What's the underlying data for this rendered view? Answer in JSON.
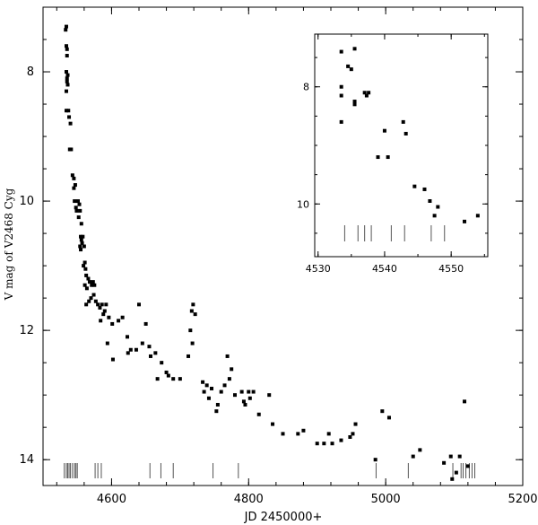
{
  "chart_data": [
    {
      "type": "scatter",
      "xlabel": "JD 2450000+",
      "ylabel": "V mag of V2468 Cyg",
      "xlim": [
        4500,
        5200
      ],
      "ylim": [
        7.0,
        14.4
      ],
      "y_inverted": true,
      "x_ticks": [
        4600,
        4800,
        5000,
        5200
      ],
      "x_tick_labels": [
        "4600",
        "4800",
        "5000",
        "5200"
      ],
      "y_ticks": [
        8,
        10,
        12,
        14
      ],
      "y_tick_labels": [
        "8",
        "10",
        "12",
        "14"
      ],
      "series": [
        {
          "marker": "square",
          "points": [
            [
              4533,
              7.35
            ],
            [
              4534,
              7.3
            ],
            [
              4534,
              7.6
            ],
            [
              4535,
              7.65
            ],
            [
              4535,
              7.75
            ],
            [
              4534,
              8.0
            ],
            [
              4535,
              8.1
            ],
            [
              4535,
              8.15
            ],
            [
              4536,
              8.05
            ],
            [
              4536,
              8.2
            ],
            [
              4534,
              8.3
            ],
            [
              4534,
              8.6
            ],
            [
              4537,
              8.6
            ],
            [
              4538,
              8.7
            ],
            [
              4540,
              8.8
            ],
            [
              4539,
              9.2
            ],
            [
              4541,
              9.2
            ],
            [
              4543,
              9.6
            ],
            [
              4545,
              9.65
            ],
            [
              4545,
              9.8
            ],
            [
              4547,
              9.75
            ],
            [
              4546,
              10.0
            ],
            [
              4548,
              10.1
            ],
            [
              4549,
              10.15
            ],
            [
              4551,
              10.0
            ],
            [
              4553,
              10.05
            ],
            [
              4554,
              10.15
            ],
            [
              4552,
              10.25
            ],
            [
              4556,
              10.35
            ],
            [
              4555,
              10.55
            ],
            [
              4556,
              10.6
            ],
            [
              4558,
              10.55
            ],
            [
              4557,
              10.65
            ],
            [
              4554,
              10.7
            ],
            [
              4555,
              10.75
            ],
            [
              4560,
              10.7
            ],
            [
              4561,
              10.95
            ],
            [
              4559,
              11.0
            ],
            [
              4562,
              11.05
            ],
            [
              4563,
              11.15
            ],
            [
              4561,
              11.3
            ],
            [
              4564,
              11.35
            ],
            [
              4566,
              11.2
            ],
            [
              4568,
              11.25
            ],
            [
              4571,
              11.3
            ],
            [
              4573,
              11.25
            ],
            [
              4575,
              11.3
            ],
            [
              4574,
              11.45
            ],
            [
              4570,
              11.5
            ],
            [
              4567,
              11.55
            ],
            [
              4563,
              11.6
            ],
            [
              4577,
              11.55
            ],
            [
              4580,
              11.6
            ],
            [
              4583,
              11.65
            ],
            [
              4586,
              11.6
            ],
            [
              4588,
              11.75
            ],
            [
              4590,
              11.7
            ],
            [
              4584,
              11.85
            ],
            [
              4592,
              11.6
            ],
            [
              4596,
              11.8
            ],
            [
              4601,
              11.9
            ],
            [
              4610,
              11.85
            ],
            [
              4616,
              11.8
            ],
            [
              4594,
              12.2
            ],
            [
              4602,
              12.45
            ],
            [
              4623,
              12.1
            ],
            [
              4628,
              12.3
            ],
            [
              4624,
              12.35
            ],
            [
              4636,
              12.3
            ],
            [
              4640,
              11.6
            ],
            [
              4645,
              12.2
            ],
            [
              4650,
              11.9
            ],
            [
              4655,
              12.25
            ],
            [
              4657,
              12.4
            ],
            [
              4664,
              12.35
            ],
            [
              4667,
              12.75
            ],
            [
              4673,
              12.5
            ],
            [
              4680,
              12.65
            ],
            [
              4683,
              12.7
            ],
            [
              4690,
              12.75
            ],
            [
              4700,
              12.75
            ],
            [
              4712,
              12.4
            ],
            [
              4715,
              12.0
            ],
            [
              4717,
              11.7
            ],
            [
              4718,
              12.2
            ],
            [
              4719,
              11.6
            ],
            [
              4722,
              11.75
            ],
            [
              4733,
              12.8
            ],
            [
              4735,
              12.95
            ],
            [
              4739,
              12.85
            ],
            [
              4742,
              13.05
            ],
            [
              4746,
              12.9
            ],
            [
              4753,
              13.25
            ],
            [
              4755,
              13.15
            ],
            [
              4760,
              12.95
            ],
            [
              4765,
              12.85
            ],
            [
              4769,
              12.4
            ],
            [
              4772,
              12.75
            ],
            [
              4775,
              12.6
            ],
            [
              4780,
              13.0
            ],
            [
              4790,
              12.95
            ],
            [
              4793,
              13.1
            ],
            [
              4795,
              13.15
            ],
            [
              4800,
              12.95
            ],
            [
              4802,
              13.05
            ],
            [
              4807,
              12.95
            ],
            [
              4815,
              13.3
            ],
            [
              4830,
              13.0
            ],
            [
              4835,
              13.45
            ],
            [
              4850,
              13.6
            ],
            [
              4872,
              13.6
            ],
            [
              4880,
              13.55
            ],
            [
              4900,
              13.75
            ],
            [
              4910,
              13.75
            ],
            [
              4917,
              13.6
            ],
            [
              4922,
              13.75
            ],
            [
              4935,
              13.7
            ],
            [
              4948,
              13.65
            ],
            [
              4952,
              13.6
            ],
            [
              4956,
              13.45
            ],
            [
              4985,
              14.0
            ],
            [
              4995,
              13.25
            ],
            [
              5005,
              13.35
            ],
            [
              5040,
              13.95
            ],
            [
              5050,
              13.85
            ],
            [
              5085,
              14.05
            ],
            [
              5095,
              13.95
            ],
            [
              5097,
              14.3
            ],
            [
              5103,
              14.2
            ],
            [
              5108,
              13.95
            ],
            [
              5115,
              13.1
            ],
            [
              5120,
              14.1
            ]
          ]
        }
      ],
      "tick_marks_x": [
        4531,
        4534,
        4536,
        4538,
        4540,
        4543,
        4546,
        4548,
        4550,
        4576,
        4580,
        4585,
        4656,
        4672,
        4690,
        4748,
        4785,
        4986,
        5033,
        5098,
        5110,
        5113,
        5117,
        5122,
        5126,
        5130
      ]
    },
    {
      "type": "scatter",
      "inset": true,
      "xlim": [
        4529.5,
        4555.5
      ],
      "ylim": [
        7.1,
        10.9
      ],
      "y_inverted": true,
      "x_ticks": [
        4530,
        4540,
        4550
      ],
      "x_tick_labels": [
        "4530",
        "4540",
        "4550"
      ],
      "y_ticks": [
        8,
        10
      ],
      "y_tick_labels": [
        "8",
        "10"
      ],
      "series": [
        {
          "marker": "square",
          "points": [
            [
              4533.5,
              7.4
            ],
            [
              4535.5,
              7.35
            ],
            [
              4534.5,
              7.65
            ],
            [
              4535,
              7.7
            ],
            [
              4533.5,
              8.0
            ],
            [
              4533.5,
              8.15
            ],
            [
              4535.5,
              8.25
            ],
            [
              4535.5,
              8.3
            ],
            [
              4537,
              8.1
            ],
            [
              4537.3,
              8.15
            ],
            [
              4537.6,
              8.1
            ],
            [
              4533.5,
              8.6
            ],
            [
              4539,
              9.2
            ],
            [
              4540,
              8.75
            ],
            [
              4540.5,
              9.2
            ],
            [
              4542.8,
              8.6
            ],
            [
              4543.2,
              8.8
            ],
            [
              4544.5,
              9.7
            ],
            [
              4546,
              9.75
            ],
            [
              4546.8,
              9.95
            ],
            [
              4547.5,
              10.2
            ],
            [
              4548,
              10.05
            ],
            [
              4552,
              10.3
            ],
            [
              4554,
              10.2
            ]
          ]
        }
      ],
      "tick_marks_x": [
        4534,
        4536,
        4537,
        4538,
        4541,
        4543,
        4547,
        4549
      ]
    }
  ]
}
